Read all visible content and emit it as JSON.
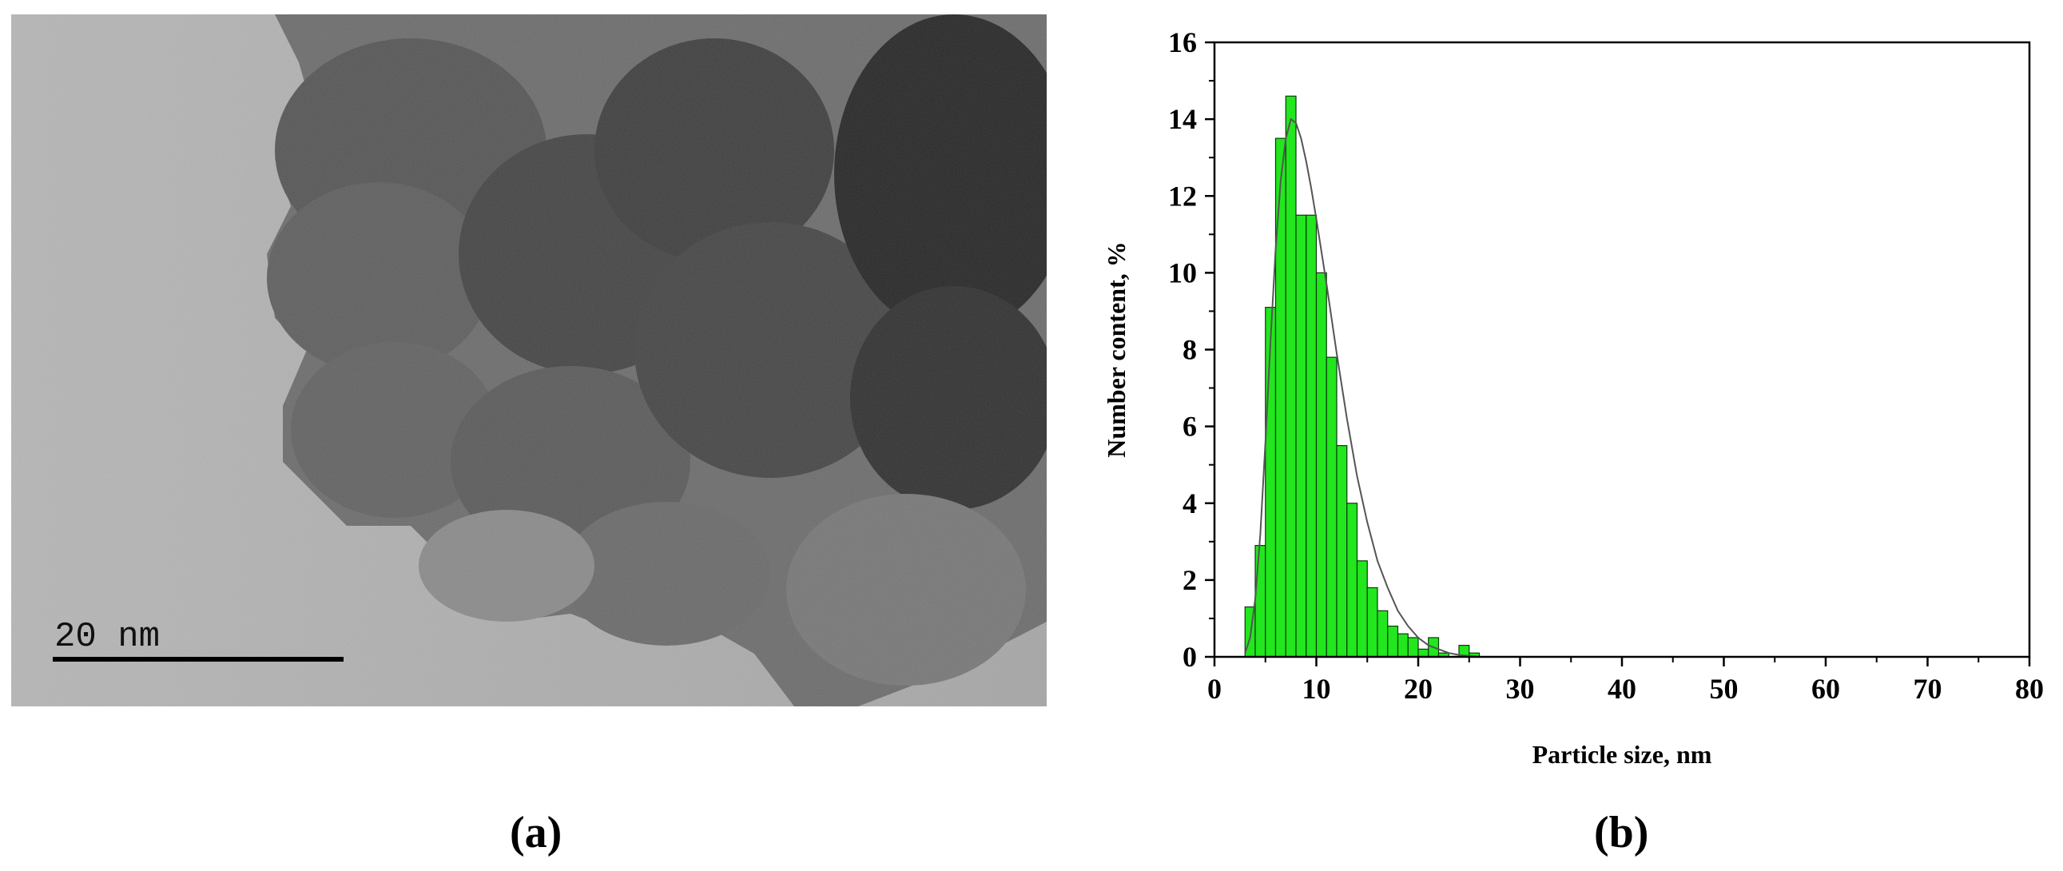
{
  "panels": {
    "a": {
      "label": "(a)",
      "scale_bar_text": "20 nm"
    },
    "b": {
      "label": "(b)"
    }
  },
  "colors": {
    "bar_fill": "#22e61e",
    "bar_stroke": "#0a3a0a",
    "fit_line": "#555555",
    "axis": "#000000"
  },
  "chart_data": {
    "type": "bar",
    "xlabel": "Particle size, nm",
    "ylabel": "Number content, %",
    "xlim": [
      0,
      80
    ],
    "ylim": [
      0,
      16
    ],
    "xticks": [
      0,
      10,
      20,
      30,
      40,
      50,
      60,
      70,
      80
    ],
    "yticks": [
      0,
      2,
      4,
      6,
      8,
      10,
      12,
      14,
      16
    ],
    "bin_width": 1,
    "bin_starts": [
      3,
      4,
      5,
      6,
      7,
      8,
      9,
      10,
      11,
      12,
      13,
      14,
      15,
      16,
      17,
      18,
      19,
      20,
      21,
      22,
      23,
      24,
      25
    ],
    "values": [
      1.3,
      2.9,
      9.1,
      13.5,
      14.6,
      11.5,
      11.5,
      10.0,
      7.8,
      5.5,
      4.0,
      2.5,
      1.8,
      1.2,
      0.8,
      0.6,
      0.5,
      0.2,
      0.5,
      0.1,
      0.0,
      0.3,
      0.1
    ],
    "grid": false,
    "fit_curve": {
      "x": [
        3,
        3.5,
        4,
        4.5,
        5,
        5.5,
        6,
        6.5,
        7,
        7.5,
        8,
        8.5,
        9,
        9.5,
        10,
        11,
        12,
        13,
        14,
        15,
        16,
        17,
        18,
        19,
        20,
        21,
        22,
        23,
        24,
        25,
        26
      ],
      "y": [
        0.1,
        0.5,
        1.5,
        3.2,
        5.6,
        8.2,
        10.6,
        12.4,
        13.5,
        14.0,
        13.9,
        13.5,
        12.9,
        12.2,
        11.4,
        9.7,
        7.9,
        6.2,
        4.7,
        3.5,
        2.5,
        1.8,
        1.2,
        0.8,
        0.5,
        0.3,
        0.2,
        0.1,
        0.05,
        0.02,
        0.0
      ]
    }
  }
}
